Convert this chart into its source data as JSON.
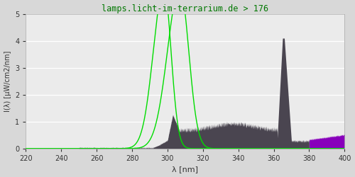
{
  "title": "lamps.licht-im-terrarium.de > 176",
  "xlabel": "λ [nm]",
  "ylabel": "I(λ) [µW/cm2/nm]",
  "xlim": [
    220,
    400
  ],
  "ylim": [
    0.0,
    5.0
  ],
  "yticks": [
    0.0,
    1.0,
    2.0,
    3.0,
    4.0,
    5.0
  ],
  "xticks": [
    220,
    240,
    260,
    280,
    300,
    320,
    340,
    360,
    380,
    400
  ],
  "bg_color": "#d8d8d8",
  "plot_bg_color": "#ebebeb",
  "spectrum_color": "#4a4550",
  "purple_color": "#8800bb",
  "green_color": "#00dd00",
  "title_color": "#007700"
}
